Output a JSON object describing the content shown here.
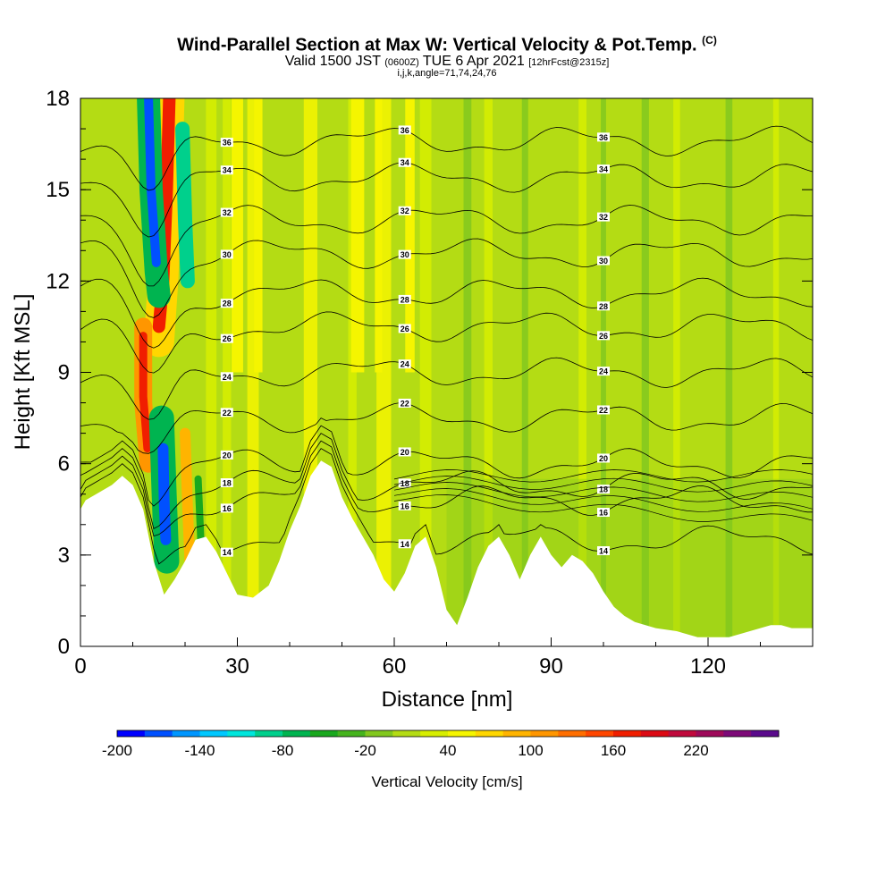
{
  "header": {
    "title": "Wind-Parallel Section at Max W: Vertical Velocity & Pot.Temp.",
    "title_mark": "(C)",
    "valid_prefix": "Valid 1500 JST",
    "valid_zulu": "(0600Z)",
    "valid_date": "TUE 6 Apr 2021",
    "forecast": "[12hrFcst@2315z]",
    "indices": "i,j,k,angle=71,74,24,76"
  },
  "colorbar": {
    "label": "Vertical Velocity [cm/s]",
    "tick_labels": [
      "-200",
      "-140",
      "-80",
      "-20",
      "40",
      "100",
      "160",
      "220"
    ],
    "colors": [
      "#0000ff",
      "#0050ff",
      "#0096ff",
      "#00c8ff",
      "#00e6dc",
      "#00d08c",
      "#00b450",
      "#19a81e",
      "#46b41e",
      "#82c81e",
      "#b4dc14",
      "#d7ee00",
      "#f5f500",
      "#ffd700",
      "#ffb400",
      "#ff9600",
      "#ff6e00",
      "#ff4600",
      "#f01e00",
      "#dc0a14",
      "#c00a3c",
      "#9e0a5a",
      "#7d0a78",
      "#5a0a8c"
    ]
  },
  "chart_data": {
    "type": "heatmap",
    "title": "Wind-Parallel Section at Max W: Vertical Velocity & Pot.Temp.",
    "xlabel": "Distance [nm]",
    "ylabel": "Height [Kft MSL]",
    "xlim": [
      0,
      140
    ],
    "ylim": [
      0,
      18
    ],
    "x_ticks": [
      0,
      30,
      60,
      90,
      120
    ],
    "y_ticks": [
      0,
      3,
      6,
      9,
      12,
      15,
      18
    ],
    "contour_variable": "Potential Temperature",
    "terrain": [
      [
        0,
        4.5
      ],
      [
        1,
        4.8
      ],
      [
        3,
        5.0
      ],
      [
        6,
        5.3
      ],
      [
        8,
        5.6
      ],
      [
        10,
        5.3
      ],
      [
        12,
        4.5
      ],
      [
        14,
        2.8
      ],
      [
        16,
        1.7
      ],
      [
        18,
        2.2
      ],
      [
        20,
        2.8
      ],
      [
        22,
        3.5
      ],
      [
        24,
        3.6
      ],
      [
        26,
        3.1
      ],
      [
        28,
        2.4
      ],
      [
        30,
        1.7
      ],
      [
        33,
        1.6
      ],
      [
        36,
        2.0
      ],
      [
        38,
        2.8
      ],
      [
        40,
        3.8
      ],
      [
        42,
        4.6
      ],
      [
        44,
        5.6
      ],
      [
        46,
        6.1
      ],
      [
        48,
        5.9
      ],
      [
        50,
        4.9
      ],
      [
        52,
        4.2
      ],
      [
        54,
        3.6
      ],
      [
        56,
        3.0
      ],
      [
        58,
        2.2
      ],
      [
        60,
        1.8
      ],
      [
        62,
        2.4
      ],
      [
        64,
        3.3
      ],
      [
        66,
        3.6
      ],
      [
        68,
        2.6
      ],
      [
        70,
        1.2
      ],
      [
        72,
        0.7
      ],
      [
        74,
        1.6
      ],
      [
        76,
        2.6
      ],
      [
        78,
        3.3
      ],
      [
        80,
        3.6
      ],
      [
        82,
        3.0
      ],
      [
        84,
        2.2
      ],
      [
        86,
        3.0
      ],
      [
        88,
        3.6
      ],
      [
        90,
        3.0
      ],
      [
        92,
        2.6
      ],
      [
        94,
        3.0
      ],
      [
        96,
        2.8
      ],
      [
        98,
        2.4
      ],
      [
        100,
        1.8
      ],
      [
        102,
        1.3
      ],
      [
        104,
        1.0
      ],
      [
        106,
        0.8
      ],
      [
        110,
        0.6
      ],
      [
        114,
        0.5
      ],
      [
        118,
        0.3
      ],
      [
        124,
        0.3
      ],
      [
        128,
        0.5
      ],
      [
        132,
        0.7
      ],
      [
        134,
        0.7
      ],
      [
        136,
        0.6
      ],
      [
        140,
        0.6
      ]
    ],
    "isentrope_levels": [
      {
        "base": 3.5,
        "label": "14"
      },
      {
        "base": 4.8,
        "label": "16"
      },
      {
        "base": 5.3,
        "label": "18"
      },
      {
        "base": 6.0,
        "label": "20"
      },
      {
        "base": 7.5,
        "label": "22"
      },
      {
        "base": 9.0,
        "label": "24"
      },
      {
        "base": 10.5,
        "label": "26"
      },
      {
        "base": 11.6,
        "label": "28"
      },
      {
        "base": 12.9,
        "label": "30"
      },
      {
        "base": 14.0,
        "label": "32"
      },
      {
        "base": 15.4,
        "label": "34"
      },
      {
        "base": 16.6,
        "label": "36"
      }
    ]
  }
}
